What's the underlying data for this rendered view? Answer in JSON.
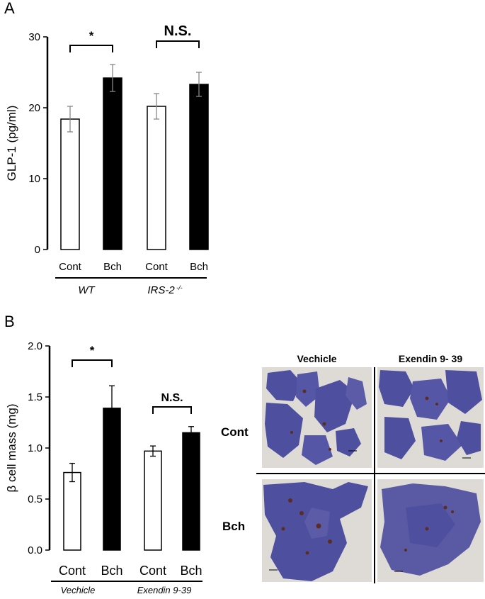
{
  "panel_a": {
    "letter": "A",
    "chart_data": {
      "type": "bar",
      "ylabel": "GLP-1 (pg/ml)",
      "ylim": [
        0,
        30
      ],
      "yticks": [
        "0",
        "10",
        "20",
        "30"
      ],
      "categories": [
        "Cont",
        "Bch",
        "Cont",
        "Bch"
      ],
      "values": [
        18.4,
        24.2,
        20.2,
        23.3
      ],
      "errors": [
        1.8,
        1.9,
        1.8,
        1.7
      ],
      "bar_colors": [
        "#ffffff",
        "#000000",
        "#ffffff",
        "#000000"
      ],
      "groups": [
        {
          "label": "WT",
          "sup": ""
        },
        {
          "label": "IRS-2",
          "sup": "-/-"
        }
      ],
      "annotations": [
        "*",
        "N.S."
      ]
    }
  },
  "panel_b": {
    "letter": "B",
    "chart_data": {
      "type": "bar",
      "ylabel": "β cell mass (mg)",
      "ylim": [
        0,
        2.0
      ],
      "yticks": [
        "0.0",
        "0.5",
        "1.0",
        "1.5",
        "2.0"
      ],
      "categories": [
        "Cont",
        "Bch",
        "Cont",
        "Bch"
      ],
      "values": [
        0.76,
        1.39,
        0.97,
        1.15
      ],
      "errors": [
        0.09,
        0.22,
        0.05,
        0.06
      ],
      "bar_colors": [
        "#ffffff",
        "#000000",
        "#ffffff",
        "#000000"
      ],
      "groups": [
        {
          "label": "Vechicle",
          "sup": ""
        },
        {
          "label": "Exendin  9-39",
          "sup": ""
        }
      ],
      "annotations": [
        "*",
        "N.S."
      ]
    },
    "micrographs": {
      "columns": [
        "Vechicle",
        "Exendin 9- 39"
      ],
      "rows": [
        "Cont",
        "Bch"
      ],
      "colors": {
        "tissue": "#4f4fa0",
        "background": "#dedbd7",
        "islet": "#5a2d22"
      }
    }
  }
}
